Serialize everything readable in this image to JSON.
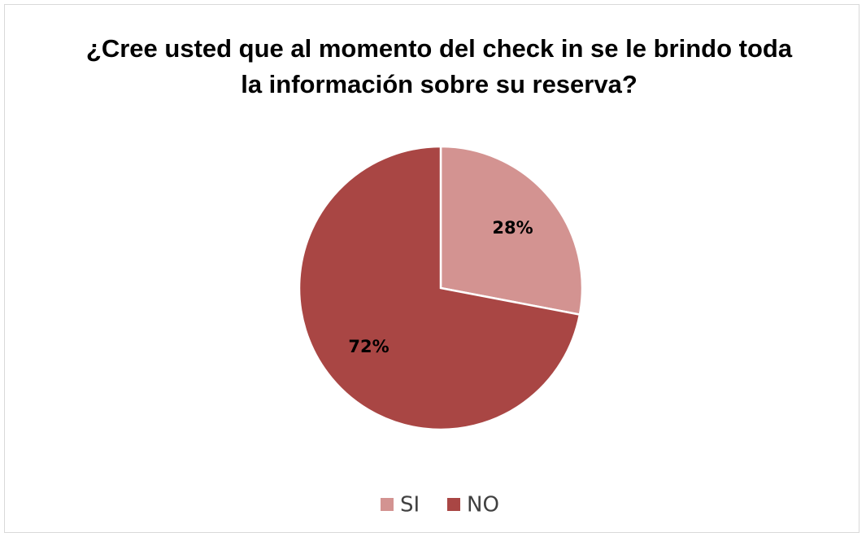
{
  "chart_data": {
    "type": "pie",
    "title": "¿Cree usted que al momento del check in se le brindo toda la información sobre su reserva?",
    "categories": [
      "SI",
      "NO"
    ],
    "values": [
      28,
      72
    ],
    "value_labels": [
      "28%",
      "72%"
    ],
    "colors": [
      "#d39391",
      "#a94644"
    ],
    "legend": "bottom"
  }
}
